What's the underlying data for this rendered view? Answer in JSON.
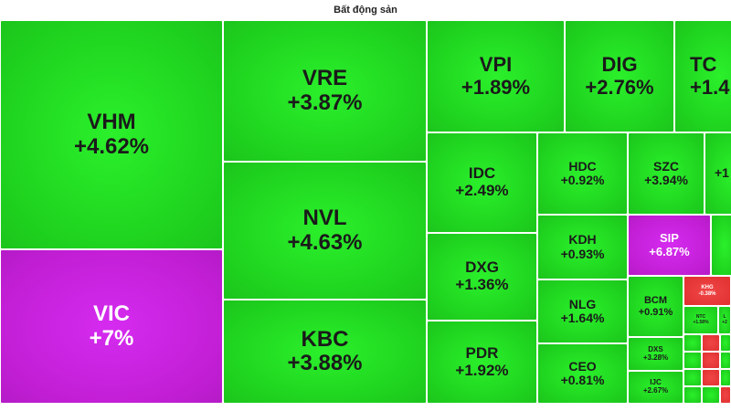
{
  "title": "Bất động sản",
  "colors": {
    "up": "#1fd31f",
    "ceiling": "#c31fd6",
    "down": "#e03030"
  },
  "tiles": {
    "vhm": {
      "ticker": "VHM",
      "change": "+4.62%"
    },
    "vic": {
      "ticker": "VIC",
      "change": "+7%"
    },
    "vre": {
      "ticker": "VRE",
      "change": "+3.87%"
    },
    "nvl": {
      "ticker": "NVL",
      "change": "+4.63%"
    },
    "kbc": {
      "ticker": "KBC",
      "change": "+3.88%"
    },
    "vpi": {
      "ticker": "VPI",
      "change": "+1.89%"
    },
    "dig": {
      "ticker": "DIG",
      "change": "+2.76%"
    },
    "tc": {
      "ticker": "TC",
      "change": "+1.4"
    },
    "idc": {
      "ticker": "IDC",
      "change": "+2.49%"
    },
    "dxg": {
      "ticker": "DXG",
      "change": "+1.36%"
    },
    "pdr": {
      "ticker": "PDR",
      "change": "+1.92%"
    },
    "hdc": {
      "ticker": "HDC",
      "change": "+0.92%"
    },
    "szc": {
      "ticker": "SZC",
      "change": "+3.94%"
    },
    "edge1": {
      "ticker": "",
      "change": "+1"
    },
    "kdh": {
      "ticker": "KDH",
      "change": "+0.93%"
    },
    "sip": {
      "ticker": "SIP",
      "change": "+6.87%"
    },
    "nlg": {
      "ticker": "NLG",
      "change": "+1.64%"
    },
    "ceo": {
      "ticker": "CEO",
      "change": "+0.81%"
    },
    "bcm": {
      "ticker": "BCM",
      "change": "+0.91%"
    },
    "khg": {
      "ticker": "KHG",
      "change": "-0.38%"
    },
    "dxs": {
      "ticker": "DXS",
      "change": "+3.28%"
    },
    "ijc": {
      "ticker": "IJC",
      "change": "+2.67%"
    },
    "ntc": {
      "ticker": "NTC",
      "change": "+1.58%"
    },
    "edge2": {
      "ticker": "L",
      "change": "+2"
    }
  }
}
